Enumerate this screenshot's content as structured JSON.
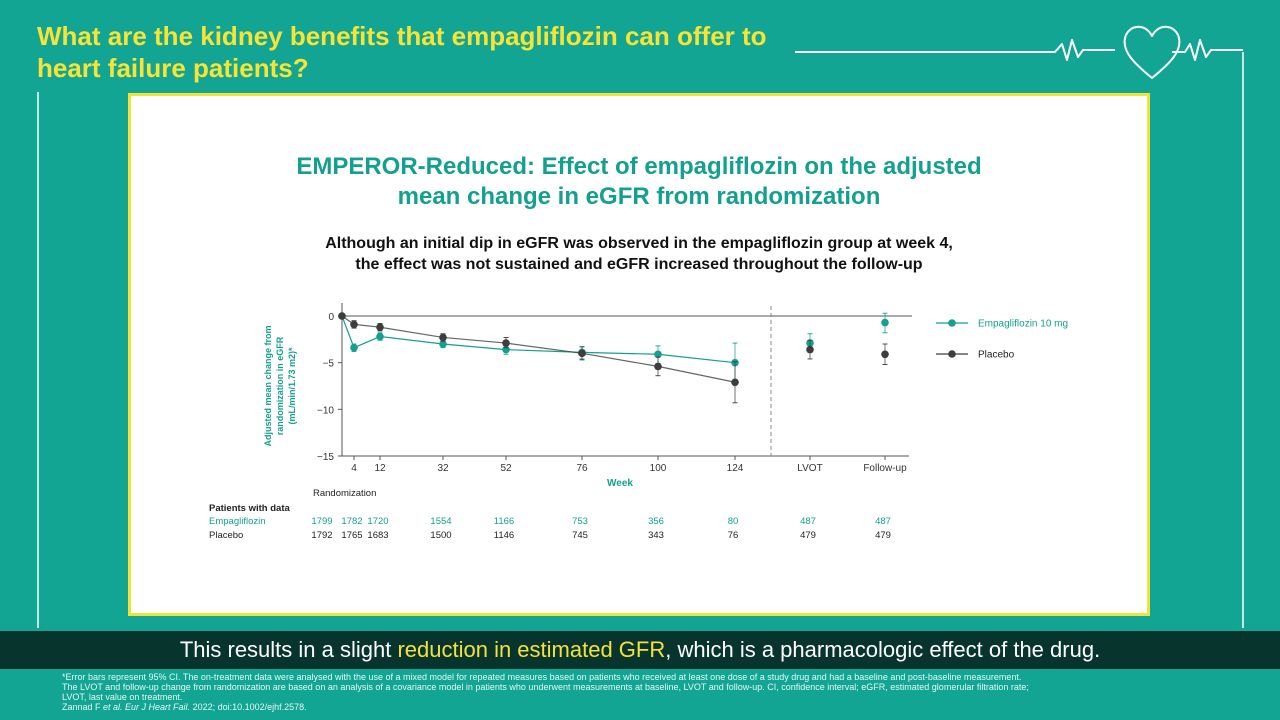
{
  "headline": "What are the kidney benefits that empagliflozin can offer to heart failure patients?",
  "card": {
    "title_line1": "EMPEROR-Reduced: Effect of empagliflozin on the adjusted",
    "title_line2": "mean change in eGFR from randomization",
    "subtitle_line1": "Although an initial dip in eGFR was observed in the empagliflozin group at week 4,",
    "subtitle_line2": "the effect was not sustained and eGFR increased throughout the follow-up"
  },
  "chart_data": {
    "type": "line",
    "ylabel": "Adjusted mean change from randomization in eGFR (mL/min/1.73 m2)*",
    "ylabel_lines": [
      "Adjusted mean change from",
      "randomization in eGFR",
      "(mL/min/1.73 m2)*"
    ],
    "xlabel": "Week",
    "ylim": [
      -15,
      0
    ],
    "yticks": [
      0,
      -5,
      -10,
      -15
    ],
    "xticks": [
      {
        "label": "4",
        "week": 4
      },
      {
        "label": "12",
        "week": 12
      },
      {
        "label": "32",
        "week": 32
      },
      {
        "label": "52",
        "week": 52
      },
      {
        "label": "76",
        "week": 76
      },
      {
        "label": "100",
        "week": 100
      },
      {
        "label": "124",
        "week": 124
      }
    ],
    "x_extra": [
      "LVOT",
      "Follow-up"
    ],
    "series": [
      {
        "name": "Empagliflozin 10 mg",
        "color": "#14a08e",
        "points": [
          {
            "x": 0,
            "y": 0,
            "lo": 0,
            "hi": 0
          },
          {
            "x": 4,
            "y": -3.4,
            "lo": -3.8,
            "hi": -3.0
          },
          {
            "x": 12,
            "y": -2.2,
            "lo": -2.6,
            "hi": -1.8
          },
          {
            "x": 32,
            "y": -3.0,
            "lo": -3.4,
            "hi": -2.6
          },
          {
            "x": 52,
            "y": -3.6,
            "lo": -4.1,
            "hi": -3.1
          },
          {
            "x": 76,
            "y": -3.9,
            "lo": -4.6,
            "hi": -3.3
          },
          {
            "x": 100,
            "y": -4.1,
            "lo": -5.1,
            "hi": -3.2
          },
          {
            "x": 124,
            "y": -5.0,
            "lo": -7.2,
            "hi": -2.9
          }
        ],
        "extra": [
          {
            "cat": "LVOT",
            "y": -2.9,
            "lo": -3.9,
            "hi": -1.9
          },
          {
            "cat": "Follow-up",
            "y": -0.7,
            "lo": -1.8,
            "hi": 0.3
          }
        ]
      },
      {
        "name": "Placebo",
        "color": "#3d3d3d",
        "points": [
          {
            "x": 0,
            "y": 0,
            "lo": 0,
            "hi": 0
          },
          {
            "x": 4,
            "y": -0.9,
            "lo": -1.3,
            "hi": -0.5
          },
          {
            "x": 12,
            "y": -1.2,
            "lo": -1.6,
            "hi": -0.8
          },
          {
            "x": 32,
            "y": -2.3,
            "lo": -2.7,
            "hi": -1.9
          },
          {
            "x": 52,
            "y": -2.9,
            "lo": -3.4,
            "hi": -2.3
          },
          {
            "x": 76,
            "y": -4.0,
            "lo": -4.7,
            "hi": -3.3
          },
          {
            "x": 100,
            "y": -5.4,
            "lo": -6.4,
            "hi": -4.4
          },
          {
            "x": 124,
            "y": -7.1,
            "lo": -9.3,
            "hi": -4.9
          }
        ],
        "extra": [
          {
            "cat": "LVOT",
            "y": -3.6,
            "lo": -4.6,
            "hi": -2.6
          },
          {
            "cat": "Follow-up",
            "y": -4.1,
            "lo": -5.2,
            "hi": -3.0
          }
        ]
      }
    ],
    "patients": {
      "header": "Patients with data",
      "randomization_label": "Randomization",
      "rows": [
        {
          "name": "Empagliflozin",
          "color": "#14a08e",
          "values": [
            "1799",
            "1782",
            "1720",
            "1554",
            "1166",
            "753",
            "356",
            "80",
            "487",
            "487"
          ]
        },
        {
          "name": "Placebo",
          "color": "#222222",
          "values": [
            "1792",
            "1765",
            "1683",
            "1500",
            "1146",
            "745",
            "343",
            "76",
            "479",
            "479"
          ]
        }
      ]
    }
  },
  "caption": {
    "before": "This results in a slight ",
    "highlight": "reduction in estimated GFR",
    "after": ", which is a pharmacologic effect of the drug."
  },
  "footnote": {
    "line1": "*Error bars represent 95% CI. The on-treatment data were analysed with the use of a mixed model for repeated measures based on patients who received at least one dose of a study drug and had a baseline and post-baseline measurement.",
    "line2": "The LVOT and follow-up change from randomization are based on an analysis of a covariance model in patients who underwent measurements at baseline, LVOT and follow-up. CI, confidence interval; eGFR, estimated glomerular filtration rate;",
    "line3": "LVOT, last value on treatment.",
    "ref_authors": "Zannad F ",
    "ref_etal": "et al. Eur J Heart Fail.",
    "ref_rest": " 2022; doi:10.1002/ejhf.2578."
  }
}
